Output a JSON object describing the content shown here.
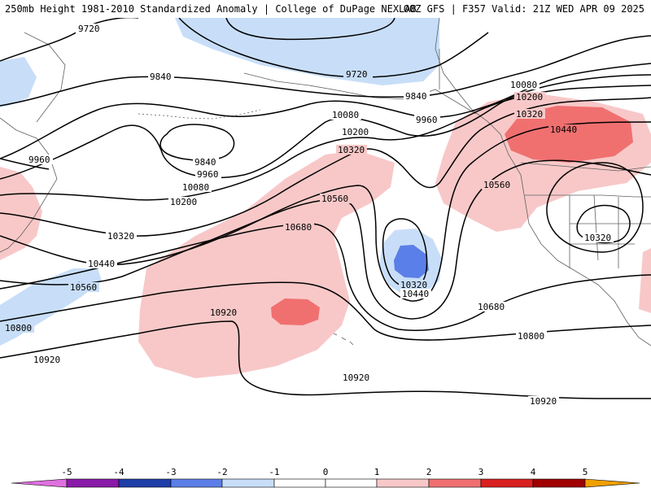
{
  "header": {
    "title": "250mb Height 1981-2010 Standardized Anomaly | College of DuPage NEXLAB",
    "run_info": "00Z GFS | F357 Valid: 21Z WED APR 09 2025"
  },
  "colors": {
    "neg5": "#e070e0",
    "neg4": "#8a1aa8",
    "neg3": "#1e3ea8",
    "neg2": "#5b7fe8",
    "neg1": "#c8def8",
    "pos1": "#f8c8c8",
    "pos2": "#f07070",
    "pos3": "#d82020",
    "pos4": "#a00000",
    "pos5": "#f0a000",
    "contour": "#000000",
    "coast": "#606060"
  },
  "contour_labels": [
    {
      "id": "9720-a",
      "text": "9720"
    },
    {
      "id": "9720-b",
      "text": "9720"
    },
    {
      "id": "9840-a",
      "text": "9840"
    },
    {
      "id": "9840-b",
      "text": "9840"
    },
    {
      "id": "9840-c",
      "text": "9840"
    },
    {
      "id": "9960-a",
      "text": "9960"
    },
    {
      "id": "9960-b",
      "text": "9960"
    },
    {
      "id": "9960-c",
      "text": "9960"
    },
    {
      "id": "10080-a",
      "text": "10080"
    },
    {
      "id": "10080-b",
      "text": "10080"
    },
    {
      "id": "10080-c",
      "text": "10080"
    },
    {
      "id": "10200-a",
      "text": "10200"
    },
    {
      "id": "10200-b",
      "text": "10200"
    },
    {
      "id": "10200-c",
      "text": "10200"
    },
    {
      "id": "10320-a",
      "text": "10320"
    },
    {
      "id": "10320-b",
      "text": "10320"
    },
    {
      "id": "10320-c",
      "text": "10320"
    },
    {
      "id": "10320-d",
      "text": "10320"
    },
    {
      "id": "10320-e",
      "text": "10320"
    },
    {
      "id": "10440-a",
      "text": "10440"
    },
    {
      "id": "10440-b",
      "text": "10440"
    },
    {
      "id": "10440-c",
      "text": "10440"
    },
    {
      "id": "10560-a",
      "text": "10560"
    },
    {
      "id": "10560-b",
      "text": "10560"
    },
    {
      "id": "10560-c",
      "text": "10560"
    },
    {
      "id": "10680-a",
      "text": "10680"
    },
    {
      "id": "10680-b",
      "text": "10680"
    },
    {
      "id": "10800-a",
      "text": "10800"
    },
    {
      "id": "10800-b",
      "text": "10800"
    },
    {
      "id": "10920-a",
      "text": "10920"
    },
    {
      "id": "10920-b",
      "text": "10920"
    },
    {
      "id": "10920-c",
      "text": "10920"
    },
    {
      "id": "10920-d",
      "text": "10920"
    }
  ],
  "colorbar": {
    "ticks": [
      "-5",
      "-4",
      "-3",
      "-2",
      "-1",
      "0",
      "1",
      "2",
      "3",
      "4",
      "5"
    ],
    "bins": [
      "neg5",
      "neg4",
      "neg3",
      "neg2",
      "neg1",
      "zero",
      "pos1",
      "pos2",
      "pos3",
      "pos4",
      "pos5"
    ]
  }
}
